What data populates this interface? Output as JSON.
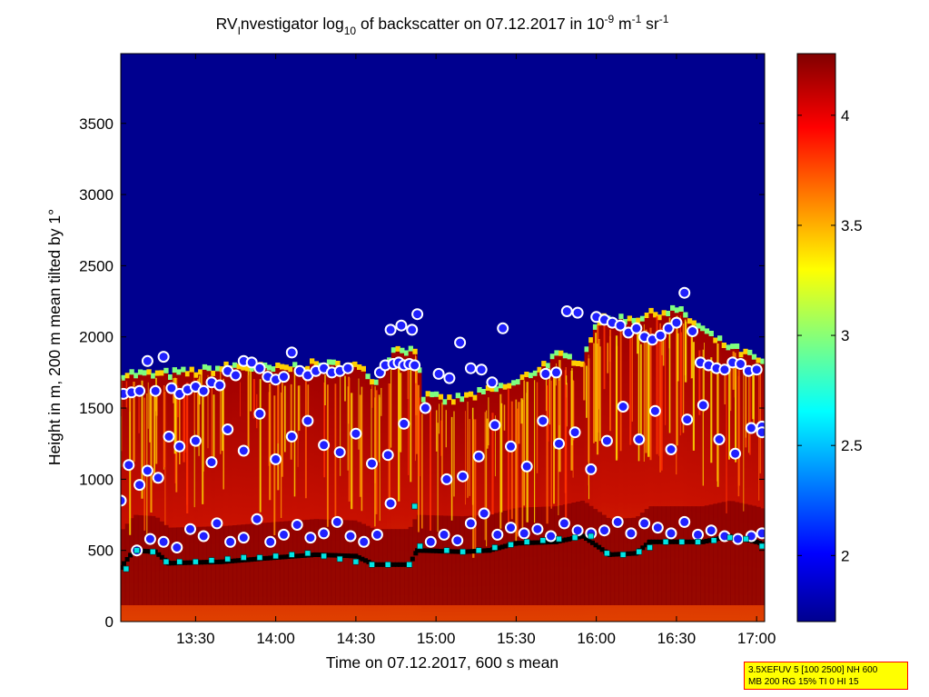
{
  "title": {
    "prefix": "RV",
    "prefix_sub": "I",
    "part1": "nvestigator log",
    "log_base": "10",
    "part2": " of backscatter on 07.12.2017 in 10",
    "exp1": "-9",
    "unit_m": " m",
    "exp2": "-1",
    "unit_sr": " sr",
    "exp3": "-1"
  },
  "xlabel": "Time on 07.12.2017, 600 s mean",
  "ylabel": "Height in m, 200 m mean tilted by 1°",
  "params": {
    "line1": "3.5XEFUV 5 [100 2500] NH 600",
    "line2": "MB 200 RG 15% TI 0 HI 15"
  },
  "chart_data": {
    "type": "heatmap",
    "x_unit": "time (HH:MM)",
    "x_range": [
      "13:02",
      "17:03"
    ],
    "x_ticks": [
      "13:30",
      "14:00",
      "14:30",
      "15:00",
      "15:30",
      "16:00",
      "16:30",
      "17:00"
    ],
    "y_range": [
      0,
      3990
    ],
    "y_ticks": [
      0,
      500,
      1000,
      1500,
      2000,
      2500,
      3000,
      3500
    ],
    "colorbar": {
      "range": [
        1.7,
        4.28
      ],
      "ticks": [
        2,
        2.5,
        3,
        3.5,
        4
      ],
      "colormap": "jet"
    },
    "cloud_top_height": [
      [
        "13:02",
        1730
      ],
      [
        "13:15",
        1720
      ],
      [
        "13:30",
        1740
      ],
      [
        "13:45",
        1780
      ],
      [
        "14:00",
        1760
      ],
      [
        "14:15",
        1790
      ],
      [
        "14:30",
        1780
      ],
      [
        "14:37",
        1680
      ],
      [
        "14:45",
        1920
      ],
      [
        "14:53",
        1880
      ],
      [
        "14:55",
        1570
      ],
      [
        "15:05",
        1540
      ],
      [
        "15:15",
        1580
      ],
      [
        "15:30",
        1660
      ],
      [
        "15:45",
        1850
      ],
      [
        "15:55",
        1820
      ],
      [
        "16:00",
        2100
      ],
      [
        "16:15",
        2120
      ],
      [
        "16:30",
        2180
      ],
      [
        "16:45",
        1960
      ],
      [
        "17:00",
        1830
      ],
      [
        "17:03",
        1780
      ]
    ],
    "background_value": 1.75,
    "boundary_layer_top": [
      [
        "13:02",
        380
      ],
      [
        "13:07",
        500
      ],
      [
        "13:15",
        490
      ],
      [
        "13:20",
        410
      ],
      [
        "13:40",
        420
      ],
      [
        "14:00",
        450
      ],
      [
        "14:15",
        470
      ],
      [
        "14:30",
        460
      ],
      [
        "14:37",
        400
      ],
      [
        "14:50",
        400
      ],
      [
        "14:53",
        500
      ],
      [
        "15:10",
        490
      ],
      [
        "15:20",
        500
      ],
      [
        "15:30",
        550
      ],
      [
        "15:45",
        560
      ],
      [
        "15:55",
        600
      ],
      [
        "16:05",
        470
      ],
      [
        "16:15",
        480
      ],
      [
        "16:20",
        560
      ],
      [
        "16:40",
        560
      ],
      [
        "16:50",
        600
      ],
      [
        "17:00",
        560
      ],
      [
        "17:03",
        540
      ]
    ],
    "series": [
      {
        "name": "layer detections (white-outlined blue circles)",
        "marker": "circle",
        "points": [
          [
            "13:03",
            1600
          ],
          [
            "13:06",
            1610
          ],
          [
            "13:09",
            1620
          ],
          [
            "13:12",
            1830
          ],
          [
            "13:15",
            1620
          ],
          [
            "13:18",
            1860
          ],
          [
            "13:21",
            1640
          ],
          [
            "13:24",
            1600
          ],
          [
            "13:27",
            1630
          ],
          [
            "13:30",
            1650
          ],
          [
            "13:33",
            1620
          ],
          [
            "13:36",
            1680
          ],
          [
            "13:39",
            1660
          ],
          [
            "13:42",
            1760
          ],
          [
            "13:45",
            1730
          ],
          [
            "13:48",
            1830
          ],
          [
            "13:51",
            1820
          ],
          [
            "13:54",
            1780
          ],
          [
            "13:57",
            1720
          ],
          [
            "14:00",
            1700
          ],
          [
            "14:03",
            1720
          ],
          [
            "14:06",
            1890
          ],
          [
            "14:09",
            1760
          ],
          [
            "14:12",
            1730
          ],
          [
            "14:15",
            1760
          ],
          [
            "14:18",
            1780
          ],
          [
            "14:21",
            1750
          ],
          [
            "14:24",
            1760
          ],
          [
            "14:27",
            1780
          ],
          [
            "14:39",
            1750
          ],
          [
            "14:41",
            1800
          ],
          [
            "14:44",
            1810
          ],
          [
            "14:46",
            1820
          ],
          [
            "14:48",
            1800
          ],
          [
            "14:50",
            1810
          ],
          [
            "14:52",
            1800
          ],
          [
            "14:43",
            2050
          ],
          [
            "14:47",
            2080
          ],
          [
            "14:51",
            2050
          ],
          [
            "14:53",
            2160
          ],
          [
            "15:01",
            1740
          ],
          [
            "15:05",
            1710
          ],
          [
            "15:09",
            1960
          ],
          [
            "15:13",
            1780
          ],
          [
            "15:17",
            1770
          ],
          [
            "15:21",
            1680
          ],
          [
            "15:25",
            2060
          ],
          [
            "15:41",
            1740
          ],
          [
            "15:45",
            1750
          ],
          [
            "15:49",
            2180
          ],
          [
            "15:53",
            2170
          ],
          [
            "16:00",
            2140
          ],
          [
            "16:03",
            2120
          ],
          [
            "16:06",
            2100
          ],
          [
            "16:09",
            2080
          ],
          [
            "16:12",
            2030
          ],
          [
            "16:15",
            2060
          ],
          [
            "16:18",
            2000
          ],
          [
            "16:21",
            1980
          ],
          [
            "16:24",
            2010
          ],
          [
            "16:27",
            2060
          ],
          [
            "16:30",
            2100
          ],
          [
            "16:33",
            2310
          ],
          [
            "16:36",
            2040
          ],
          [
            "16:39",
            1820
          ],
          [
            "16:42",
            1800
          ],
          [
            "16:45",
            1780
          ],
          [
            "16:48",
            1770
          ],
          [
            "16:51",
            1820
          ],
          [
            "16:54",
            1810
          ],
          [
            "16:57",
            1760
          ],
          [
            "17:00",
            1770
          ],
          [
            "17:02",
            1370
          ],
          [
            "13:05",
            1100
          ],
          [
            "13:09",
            960
          ],
          [
            "13:12",
            1060
          ],
          [
            "13:16",
            1010
          ],
          [
            "13:20",
            1300
          ],
          [
            "13:24",
            1230
          ],
          [
            "13:30",
            1270
          ],
          [
            "13:36",
            1120
          ],
          [
            "13:42",
            1350
          ],
          [
            "13:48",
            1200
          ],
          [
            "13:54",
            1460
          ],
          [
            "14:00",
            1140
          ],
          [
            "14:06",
            1300
          ],
          [
            "14:12",
            1410
          ],
          [
            "14:18",
            1240
          ],
          [
            "14:24",
            1190
          ],
          [
            "14:30",
            1320
          ],
          [
            "14:36",
            1110
          ],
          [
            "14:42",
            1170
          ],
          [
            "14:48",
            1390
          ],
          [
            "14:56",
            1500
          ],
          [
            "15:04",
            1000
          ],
          [
            "15:10",
            1020
          ],
          [
            "15:16",
            1160
          ],
          [
            "15:22",
            1380
          ],
          [
            "15:28",
            1230
          ],
          [
            "15:34",
            1090
          ],
          [
            "15:40",
            1410
          ],
          [
            "15:46",
            1250
          ],
          [
            "15:52",
            1330
          ],
          [
            "15:58",
            1070
          ],
          [
            "16:04",
            1270
          ],
          [
            "16:10",
            1510
          ],
          [
            "16:16",
            1280
          ],
          [
            "16:22",
            1480
          ],
          [
            "16:28",
            1210
          ],
          [
            "16:34",
            1420
          ],
          [
            "16:40",
            1520
          ],
          [
            "16:46",
            1280
          ],
          [
            "16:52",
            1180
          ],
          [
            "16:58",
            1360
          ],
          [
            "17:02",
            1330
          ],
          [
            "13:08",
            500
          ],
          [
            "13:13",
            580
          ],
          [
            "13:18",
            560
          ],
          [
            "13:23",
            520
          ],
          [
            "13:28",
            650
          ],
          [
            "13:33",
            600
          ],
          [
            "13:38",
            690
          ],
          [
            "13:43",
            560
          ],
          [
            "13:48",
            590
          ],
          [
            "13:53",
            720
          ],
          [
            "13:58",
            560
          ],
          [
            "14:03",
            610
          ],
          [
            "14:08",
            680
          ],
          [
            "14:13",
            590
          ],
          [
            "14:18",
            620
          ],
          [
            "14:23",
            700
          ],
          [
            "14:28",
            600
          ],
          [
            "14:33",
            560
          ],
          [
            "14:38",
            610
          ],
          [
            "14:43",
            830
          ],
          [
            "14:58",
            560
          ],
          [
            "15:03",
            610
          ],
          [
            "15:08",
            570
          ],
          [
            "15:13",
            690
          ],
          [
            "15:18",
            760
          ],
          [
            "15:23",
            610
          ],
          [
            "15:28",
            660
          ],
          [
            "15:33",
            620
          ],
          [
            "15:38",
            650
          ],
          [
            "15:43",
            600
          ],
          [
            "15:48",
            690
          ],
          [
            "15:53",
            640
          ],
          [
            "15:58",
            620
          ],
          [
            "16:03",
            640
          ],
          [
            "16:08",
            700
          ],
          [
            "16:13",
            620
          ],
          [
            "16:18",
            690
          ],
          [
            "16:23",
            660
          ],
          [
            "16:28",
            620
          ],
          [
            "16:33",
            700
          ],
          [
            "16:38",
            610
          ],
          [
            "16:43",
            640
          ],
          [
            "16:48",
            600
          ],
          [
            "16:53",
            580
          ],
          [
            "16:58",
            600
          ],
          [
            "17:02",
            620
          ],
          [
            "13:02",
            850
          ]
        ]
      },
      {
        "name": "cyan squares",
        "marker": "square",
        "points": [
          [
            "13:04",
            370
          ],
          [
            "13:08",
            500
          ],
          [
            "13:14",
            490
          ],
          [
            "13:19",
            420
          ],
          [
            "13:24",
            420
          ],
          [
            "13:30",
            420
          ],
          [
            "13:36",
            430
          ],
          [
            "13:42",
            440
          ],
          [
            "13:48",
            450
          ],
          [
            "13:54",
            450
          ],
          [
            "14:00",
            460
          ],
          [
            "14:06",
            470
          ],
          [
            "14:12",
            480
          ],
          [
            "14:18",
            460
          ],
          [
            "14:24",
            440
          ],
          [
            "14:30",
            420
          ],
          [
            "14:36",
            400
          ],
          [
            "14:42",
            400
          ],
          [
            "14:50",
            400
          ],
          [
            "14:52",
            810
          ],
          [
            "14:54",
            530
          ],
          [
            "15:04",
            500
          ],
          [
            "15:10",
            490
          ],
          [
            "15:16",
            500
          ],
          [
            "15:22",
            520
          ],
          [
            "15:28",
            540
          ],
          [
            "15:34",
            560
          ],
          [
            "15:40",
            570
          ],
          [
            "15:46",
            580
          ],
          [
            "15:52",
            590
          ],
          [
            "15:58",
            600
          ],
          [
            "16:04",
            480
          ],
          [
            "16:10",
            470
          ],
          [
            "16:16",
            490
          ],
          [
            "16:20",
            520
          ],
          [
            "16:26",
            560
          ],
          [
            "16:32",
            560
          ],
          [
            "16:38",
            560
          ],
          [
            "16:44",
            570
          ],
          [
            "16:50",
            590
          ],
          [
            "16:56",
            580
          ],
          [
            "17:02",
            530
          ]
        ]
      }
    ]
  }
}
